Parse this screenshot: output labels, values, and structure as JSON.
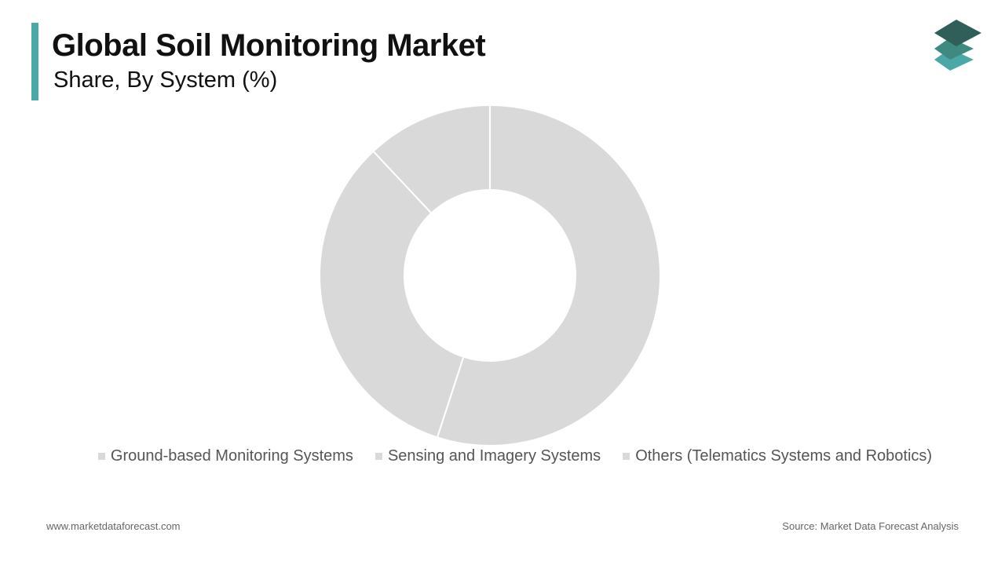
{
  "chart_data": {
    "type": "donut",
    "title": "Global Soil Monitoring Market",
    "subtitle": "Share, By System (%)",
    "categories": [
      "Ground-based Monitoring Systems",
      "Sensing and Imagery Systems",
      "Others (Telematics Systems and Robotics)"
    ],
    "values": [
      55,
      33,
      12
    ],
    "colors": [
      "#d9d9d9",
      "#d9d9d9",
      "#d9d9d9"
    ],
    "legend": "bottom"
  },
  "footer": {
    "website": "www.marketdataforecast.com",
    "source": "Source: Market Data Forecast Analysis"
  }
}
